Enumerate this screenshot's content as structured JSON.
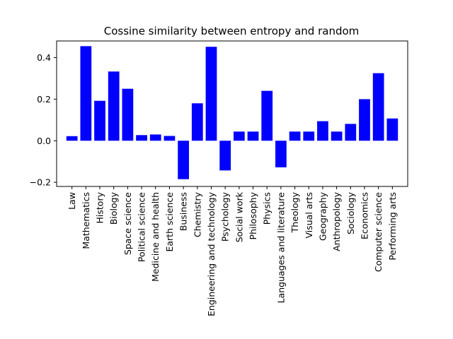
{
  "chart_data": {
    "type": "bar",
    "title": "Cossine similarity between entropy and random",
    "xlabel": "",
    "ylabel": "",
    "categories": [
      "Law",
      "Mathematics",
      "History",
      "Biology",
      "Space science",
      "Political science",
      "Medicine and health",
      "Earth science",
      "Business",
      "Chemistry",
      "Engineering and technology",
      "Psychology",
      "Social work",
      "Philosophy",
      "Physics",
      "Languages and literature",
      "Theology",
      "Visual arts",
      "Geography",
      "Anthropology",
      "Sociology",
      "Economics",
      "Computer science",
      "Performing arts"
    ],
    "values": [
      0.022,
      0.455,
      0.192,
      0.333,
      0.25,
      0.027,
      0.03,
      0.023,
      -0.185,
      0.18,
      0.452,
      -0.143,
      0.044,
      0.044,
      0.24,
      -0.128,
      0.044,
      0.044,
      0.094,
      0.044,
      0.081,
      0.2,
      0.325,
      0.107
    ],
    "ylim": [
      -0.22,
      0.48
    ],
    "yticks": [
      -0.2,
      0.0,
      0.2,
      0.4
    ],
    "ytick_labels": [
      "−0.2",
      "0.0",
      "0.2",
      "0.4"
    ],
    "bar_color": "#0000ff",
    "grid": false,
    "legend": "none"
  }
}
